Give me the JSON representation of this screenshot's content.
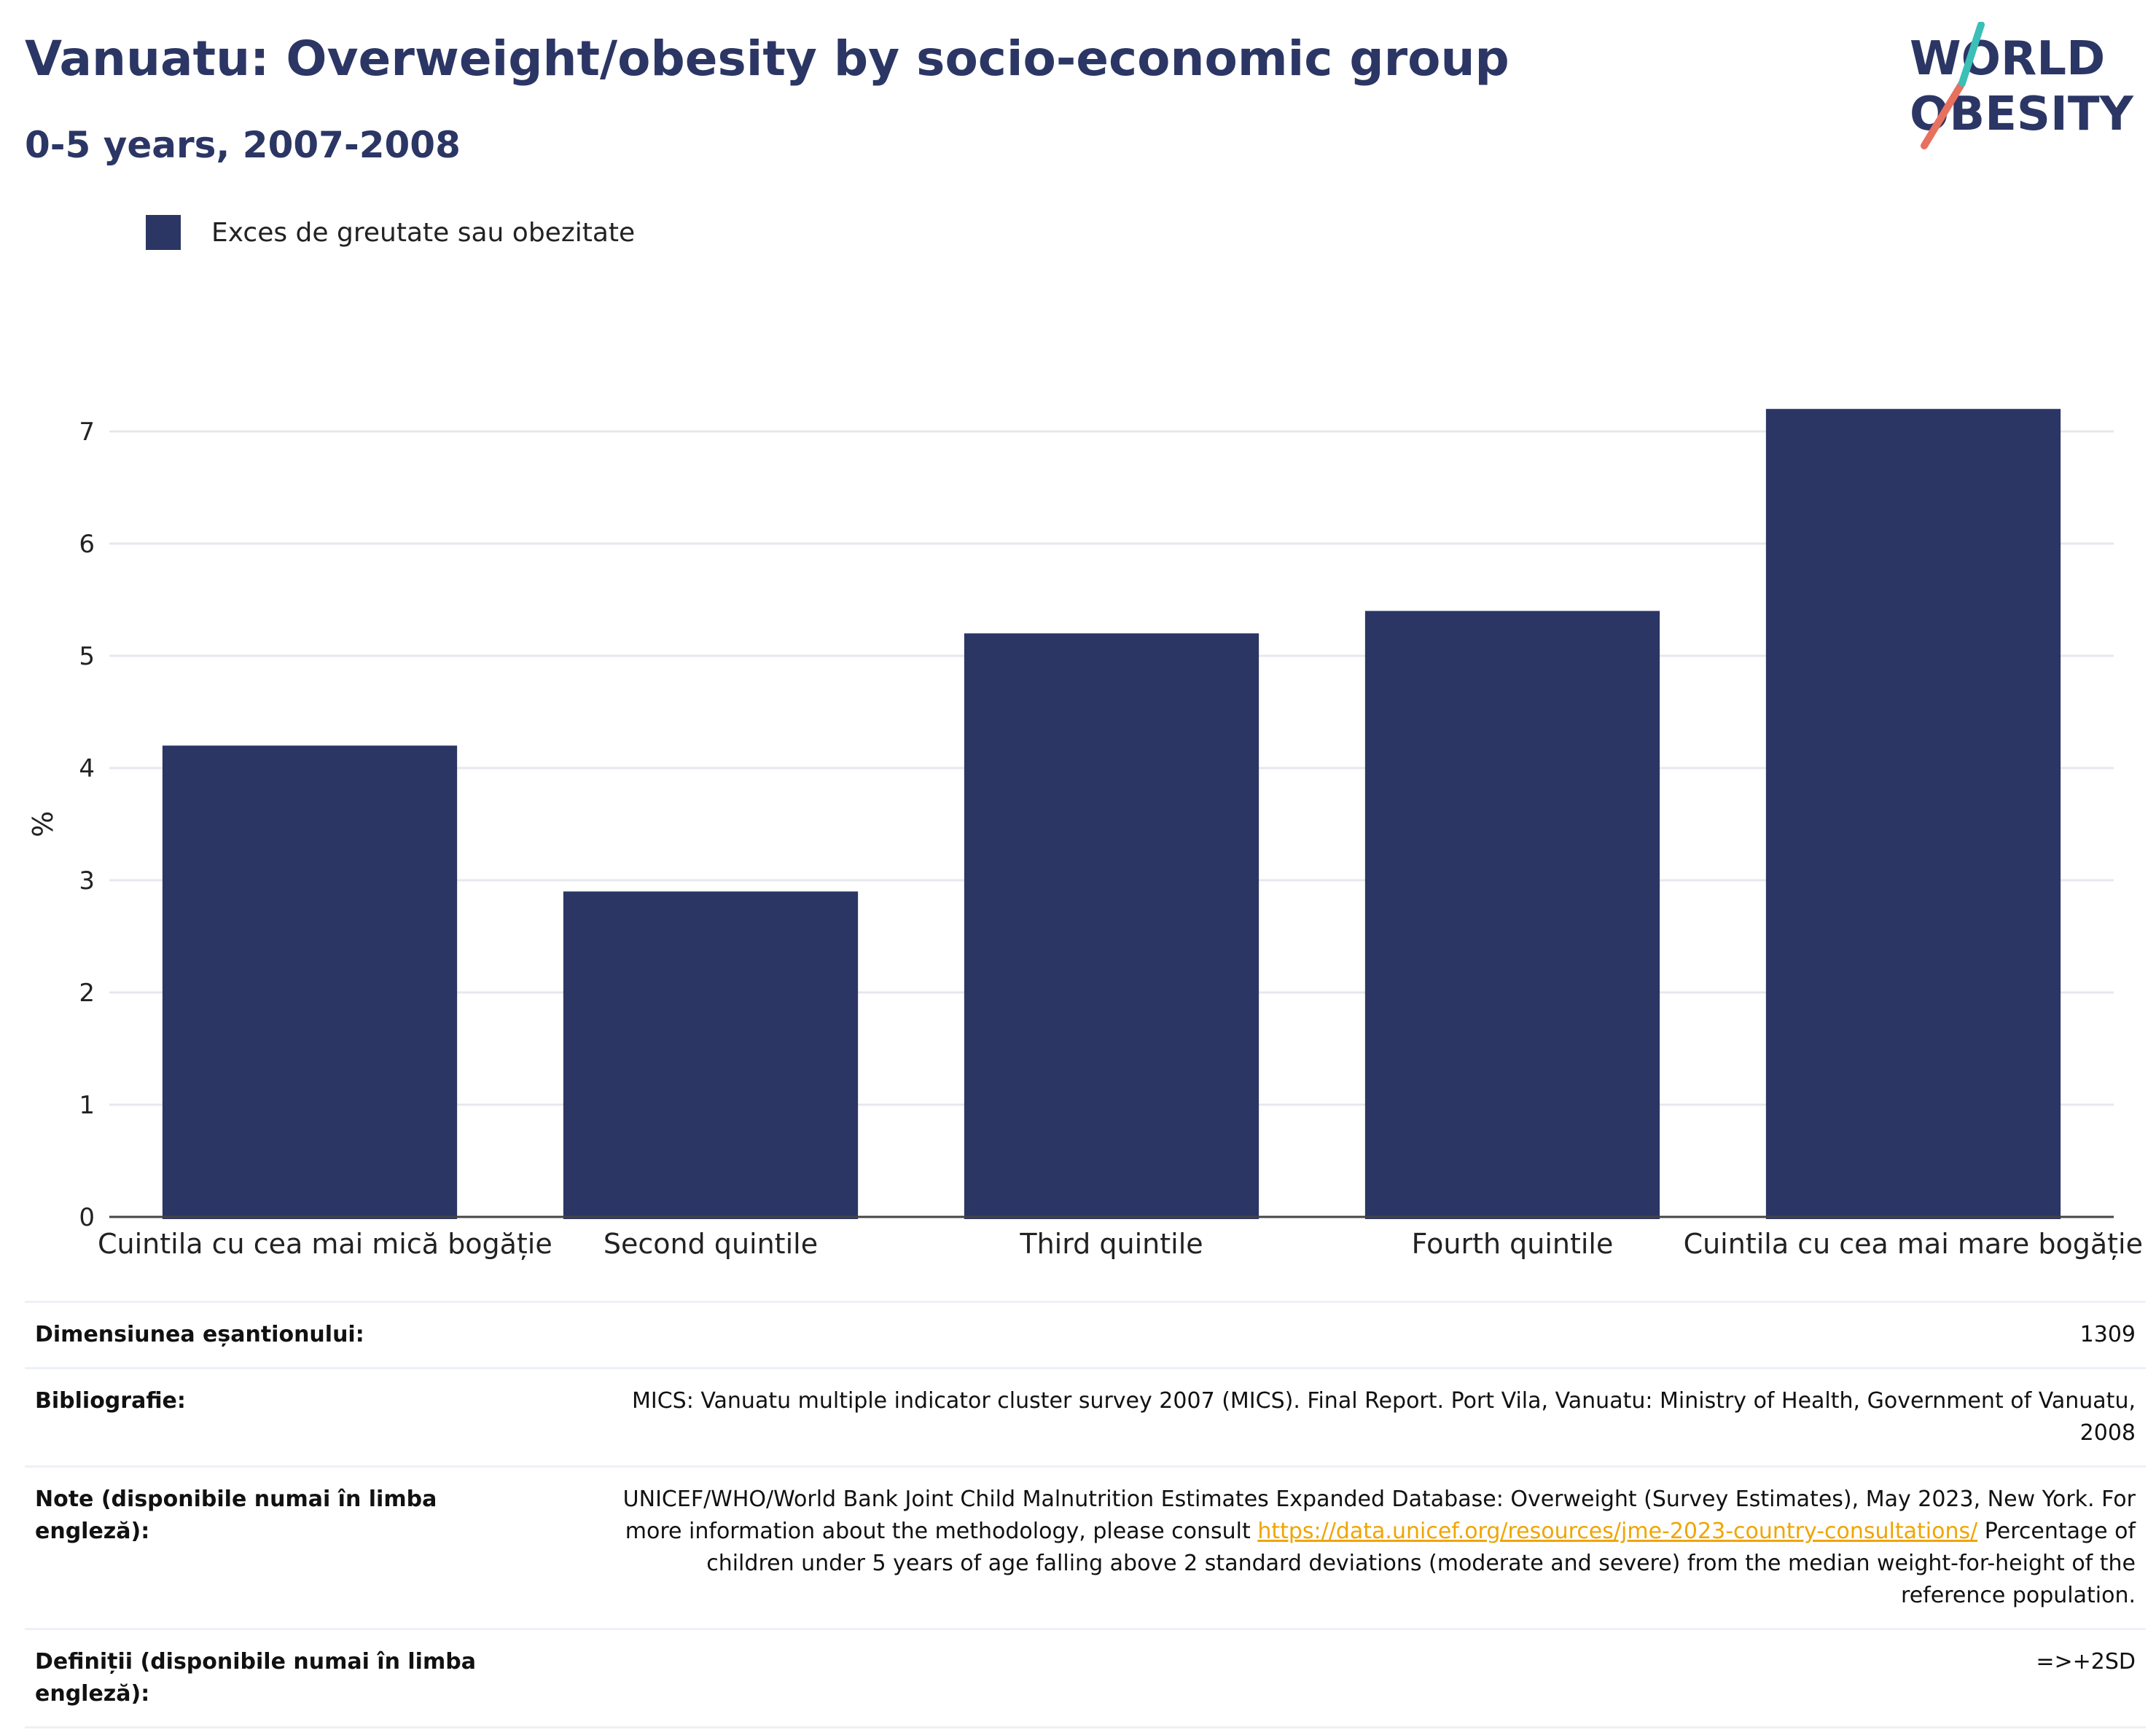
{
  "header": {
    "title": "Vanuatu: Overweight/obesity by socio-economic group",
    "subtitle": "0-5 years, 2007-2008"
  },
  "logo": {
    "line1": "WORLD",
    "line2": "OBESITY"
  },
  "colors": {
    "bar": "#2b3665",
    "title": "#2b3665",
    "grid": "#e6e8ef",
    "link": "#f0a500"
  },
  "chart_data": {
    "type": "bar",
    "categories": [
      "Cuintila cu cea mai mică bogăție",
      "Second quintile",
      "Third quintile",
      "Fourth quintile",
      "Cuintila cu cea mai mare bogăție"
    ],
    "series": [
      {
        "name": "Exces de greutate sau obezitate",
        "values": [
          4.2,
          2.9,
          5.2,
          5.4,
          7.2
        ]
      }
    ],
    "ylabel": "%",
    "xlabel": "",
    "ylim": [
      0,
      7.5
    ],
    "yticks": [
      0,
      1,
      2,
      3,
      4,
      5,
      6,
      7
    ],
    "grid": true,
    "legend": "top-left"
  },
  "info": {
    "sample_size_label": "Dimensiunea eșantionului:",
    "sample_size_value": "1309",
    "bibliography_label": "Bibliografie:",
    "bibliography_value": "MICS: Vanuatu multiple indicator cluster survey 2007 (MICS). Final Report. Port Vila, Vanuatu: Ministry of Health, Government of Vanuatu, 2008",
    "notes_label": "Note (disponibile numai în limba engleză):",
    "notes_value_pre": "UNICEF/WHO/World Bank Joint Child Malnutrition Estimates Expanded Database: Overweight (Survey Estimates), May 2023, New York. For more information about the methodology, please consult ",
    "notes_link": "https://data.unicef.org/resources/jme-2023-country-consultations/",
    "notes_value_post": " Percentage of children under 5 years of age falling above 2 standard deviations (moderate and severe) from the median weight-for-height of the reference population.",
    "definitions_label": "Definiții (disponibile numai în limba engleză):",
    "definitions_value": "=>+2SD"
  }
}
